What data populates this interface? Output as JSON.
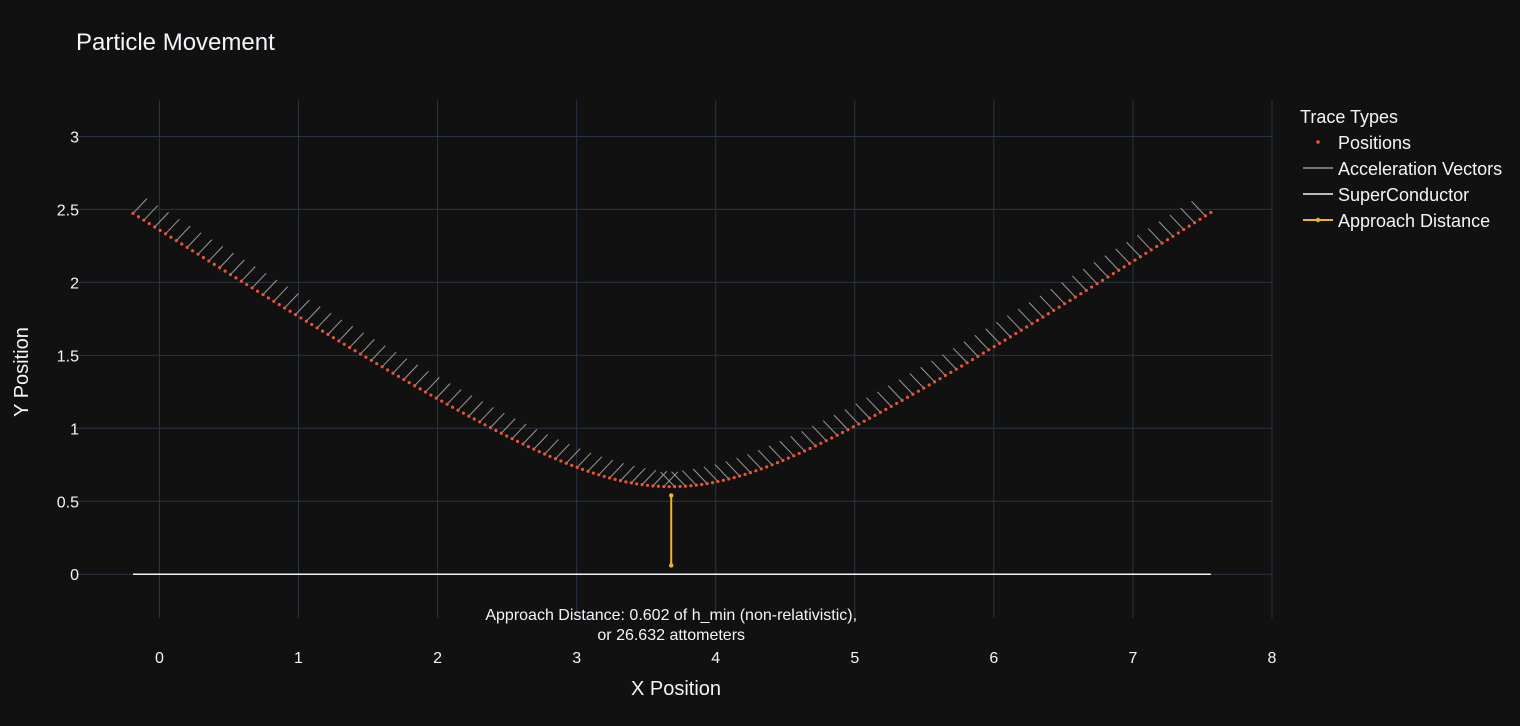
{
  "chart_data": {
    "type": "scatter",
    "title": "Particle Movement",
    "xlabel": "X Position",
    "ylabel": "Y Position",
    "xlim": [
      -0.6,
      8.0
    ],
    "ylim": [
      -0.3,
      3.25
    ],
    "x_ticks": [
      0,
      1,
      2,
      3,
      4,
      5,
      6,
      7,
      8
    ],
    "x_tick_labels": [
      "0",
      "1",
      "2",
      "3",
      "4",
      "5",
      "6",
      "7",
      "8"
    ],
    "y_ticks": [
      0,
      0.5,
      1,
      1.5,
      2,
      2.5,
      3
    ],
    "y_tick_labels": [
      "0",
      "0.5",
      "1",
      "1.5",
      "2",
      "2.5",
      "3"
    ],
    "grid": true,
    "legend_title": "Trace Types",
    "legend_position": "right",
    "series": [
      {
        "name": "Positions",
        "kind": "markers",
        "color": "#e8533c",
        "path_model": "hyperbola",
        "x_range": [
          -0.19,
          7.56
        ],
        "x_center": 3.68,
        "y_min": 0.6,
        "slope": 0.62,
        "n_points": 200
      },
      {
        "name": "Acceleration Vectors",
        "kind": "line",
        "color": "#9a9a9a",
        "vector_offset": 0.1
      },
      {
        "name": "SuperConductor",
        "kind": "line",
        "color": "#f2f5fa",
        "x": [
          -0.19,
          7.56
        ],
        "y": [
          0,
          0
        ]
      },
      {
        "name": "Approach Distance",
        "kind": "line+markers",
        "color": "#f0b429",
        "x": [
          3.68,
          3.68
        ],
        "y": [
          0.06,
          0.54
        ]
      }
    ],
    "annotation": {
      "lines": [
        "Approach Distance: 0.602 of h_min (non-relativistic),",
        "or 26.632 attometers"
      ],
      "x": 3.68,
      "y": -0.13
    }
  }
}
